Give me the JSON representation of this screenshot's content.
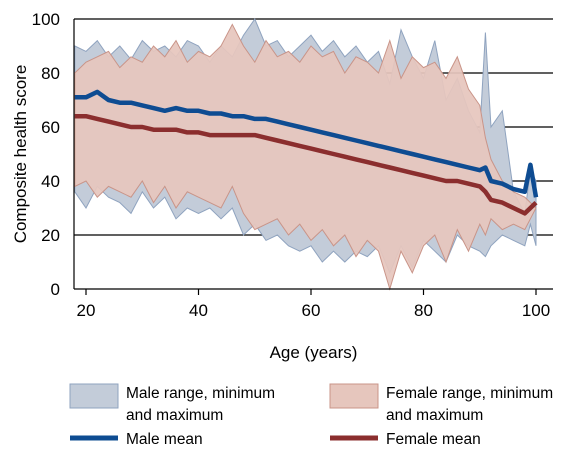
{
  "chart_data": {
    "type": "area",
    "xlabel": "Age (years)",
    "ylabel": "Composite health score",
    "xlim": [
      18,
      100
    ],
    "ylim": [
      0,
      100
    ],
    "x_ticks": [
      20,
      40,
      60,
      80,
      100
    ],
    "y_ticks": [
      0,
      20,
      40,
      60,
      80,
      100
    ],
    "grid": "horizontal",
    "legend_position": "bottom",
    "colors": {
      "male_range": "#c3ccd9",
      "male_range_edge": "#8fa3bf",
      "female_range": "#e6c6bd",
      "female_range_edge": "#c99488",
      "male_mean": "#0e4c92",
      "female_mean": "#8b2e2e"
    },
    "legend": [
      {
        "key": "male_range",
        "label_lines": [
          "Male range, minimum",
          "and maximum"
        ]
      },
      {
        "key": "female_range",
        "label_lines": [
          "Female range, minimum",
          "and maximum"
        ]
      },
      {
        "key": "male_mean",
        "label_lines": [
          "Male mean"
        ]
      },
      {
        "key": "female_mean",
        "label_lines": [
          "Female mean"
        ]
      }
    ],
    "x": [
      18,
      20,
      22,
      24,
      26,
      28,
      30,
      32,
      34,
      36,
      38,
      40,
      42,
      44,
      46,
      48,
      50,
      52,
      54,
      56,
      58,
      60,
      62,
      64,
      66,
      68,
      70,
      72,
      74,
      76,
      78,
      80,
      82,
      84,
      86,
      88,
      90,
      91,
      92,
      94,
      96,
      98,
      99,
      100
    ],
    "series": [
      {
        "name": "Male range max",
        "values": [
          90,
          88,
          92,
          86,
          90,
          85,
          92,
          88,
          90,
          86,
          92,
          90,
          84,
          90,
          86,
          94,
          100,
          90,
          92,
          86,
          90,
          94,
          88,
          92,
          86,
          90,
          84,
          88,
          76,
          96,
          86,
          78,
          92,
          70,
          78,
          66,
          58,
          95,
          60,
          66,
          36,
          28,
          44,
          40
        ]
      },
      {
        "name": "Male range min",
        "values": [
          36,
          30,
          38,
          34,
          32,
          28,
          36,
          30,
          34,
          26,
          30,
          28,
          30,
          26,
          30,
          20,
          24,
          18,
          20,
          16,
          14,
          16,
          10,
          14,
          10,
          14,
          12,
          16,
          6,
          16,
          8,
          18,
          14,
          10,
          20,
          16,
          14,
          12,
          16,
          20,
          18,
          16,
          24,
          16
        ]
      },
      {
        "name": "Female range max",
        "values": [
          80,
          84,
          86,
          88,
          82,
          86,
          84,
          90,
          86,
          92,
          84,
          88,
          86,
          90,
          98,
          90,
          84,
          92,
          86,
          88,
          84,
          90,
          86,
          88,
          80,
          86,
          84,
          80,
          92,
          78,
          86,
          82,
          84,
          78,
          86,
          74,
          68,
          56,
          48,
          40,
          36,
          34,
          32,
          30
        ]
      },
      {
        "name": "Female range min",
        "values": [
          38,
          40,
          34,
          38,
          36,
          34,
          40,
          32,
          38,
          30,
          36,
          34,
          32,
          30,
          38,
          28,
          22,
          24,
          26,
          20,
          24,
          18,
          22,
          16,
          20,
          12,
          18,
          14,
          0,
          14,
          6,
          16,
          20,
          10,
          22,
          14,
          24,
          20,
          26,
          22,
          24,
          22,
          26,
          30
        ]
      },
      {
        "name": "Male mean",
        "values": [
          71,
          71,
          73,
          70,
          69,
          69,
          68,
          67,
          66,
          67,
          66,
          66,
          65,
          65,
          64,
          64,
          63,
          63,
          62,
          61,
          60,
          59,
          58,
          57,
          56,
          55,
          54,
          53,
          52,
          51,
          50,
          49,
          48,
          47,
          46,
          45,
          44,
          45,
          40,
          39,
          37,
          36,
          46,
          34
        ]
      },
      {
        "name": "Female mean",
        "values": [
          64,
          64,
          63,
          62,
          61,
          60,
          60,
          59,
          59,
          59,
          58,
          58,
          57,
          57,
          57,
          57,
          57,
          56,
          55,
          54,
          53,
          52,
          51,
          50,
          49,
          48,
          47,
          46,
          45,
          44,
          43,
          42,
          41,
          40,
          40,
          39,
          38,
          36,
          33,
          32,
          30,
          28,
          30,
          32
        ]
      }
    ]
  }
}
